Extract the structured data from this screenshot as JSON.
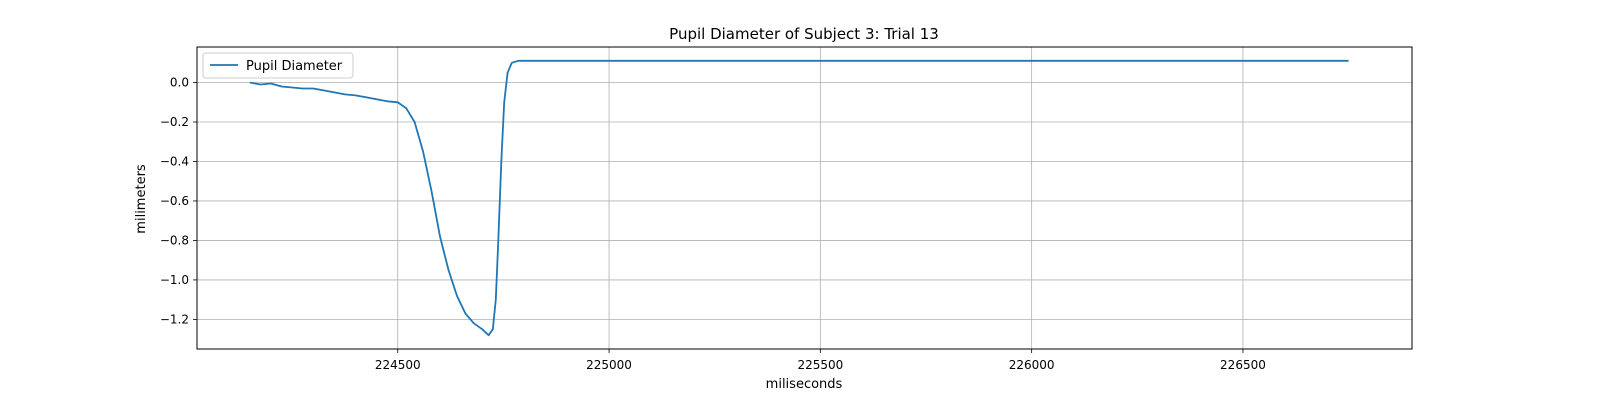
{
  "chart_data": {
    "type": "line",
    "title": "Pupil Diameter of Subject 3: Trial 13",
    "xlabel": "miliseconds",
    "ylabel": "milimeters",
    "xlim": [
      224025,
      226900
    ],
    "ylim": [
      -1.35,
      0.18
    ],
    "xticks": [
      224500,
      225000,
      225500,
      226000,
      226500
    ],
    "yticks": [
      0.0,
      -0.2,
      -0.4,
      -0.6,
      -0.8,
      -1.0,
      -1.2
    ],
    "ytick_labels": [
      "0.0",
      "−0.2",
      "−0.4",
      "−0.6",
      "−0.8",
      "−1.0",
      "−1.2"
    ],
    "grid": true,
    "legend": {
      "location": "top-left",
      "entries": [
        "Pupil Diameter"
      ]
    },
    "series": [
      {
        "name": "Pupil Diameter",
        "color": "#1f77b4",
        "x": [
          224150,
          224175,
          224200,
          224225,
          224250,
          224275,
          224300,
          224325,
          224350,
          224375,
          224400,
          224425,
          224450,
          224475,
          224500,
          224520,
          224540,
          224560,
          224580,
          224600,
          224620,
          224640,
          224660,
          224680,
          224700,
          224715,
          224725,
          224732,
          224738,
          224745,
          224752,
          224760,
          224770,
          224785,
          224800,
          225000,
          225500,
          226000,
          226500,
          226750
        ],
        "y": [
          0.0,
          -0.01,
          -0.005,
          -0.02,
          -0.025,
          -0.03,
          -0.03,
          -0.04,
          -0.05,
          -0.06,
          -0.065,
          -0.075,
          -0.085,
          -0.095,
          -0.1,
          -0.13,
          -0.2,
          -0.35,
          -0.55,
          -0.78,
          -0.95,
          -1.08,
          -1.17,
          -1.22,
          -1.25,
          -1.28,
          -1.25,
          -1.1,
          -0.8,
          -0.4,
          -0.1,
          0.05,
          0.1,
          0.11,
          0.11,
          0.11,
          0.11,
          0.11,
          0.11,
          0.11
        ]
      }
    ]
  }
}
